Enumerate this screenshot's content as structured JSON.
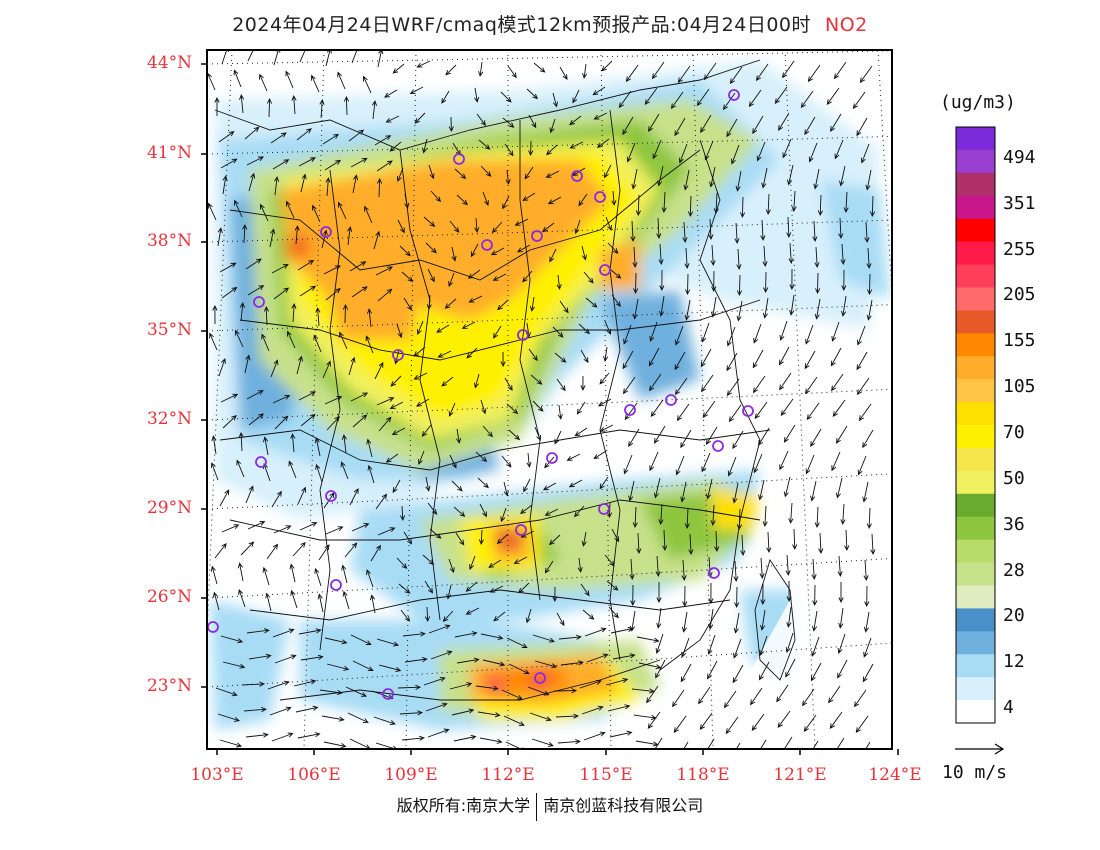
{
  "title": {
    "text": "2024年04月24日WRF/cmaq模式12km预报产品:04月24日00时",
    "species": "NO2"
  },
  "map": {
    "lat_labels": [
      "44°N",
      "41°N",
      "38°N",
      "35°N",
      "32°N",
      "29°N",
      "26°N",
      "23°N"
    ],
    "lon_labels": [
      "103°E",
      "106°E",
      "109°E",
      "112°E",
      "115°E",
      "118°E",
      "121°E",
      "124°E"
    ]
  },
  "colorbar": {
    "unit": "(ug/m3)",
    "labels": [
      "494",
      "351",
      "255",
      "205",
      "155",
      "105",
      "70",
      "50",
      "36",
      "28",
      "20",
      "12",
      "4"
    ],
    "colors": [
      "#7b2bd9",
      "#9a3fd0",
      "#b0306a",
      "#c8178a",
      "#ff0000",
      "#ff1a4a",
      "#ff3e5a",
      "#ff6a6a",
      "#e85a2a",
      "#ff8800",
      "#ffad2a",
      "#ffc444",
      "#ffe000",
      "#fff000",
      "#f5e64b",
      "#f0f060",
      "#6aaa2e",
      "#8ec63f",
      "#b8dc6a",
      "#c7e18a",
      "#deecc0",
      "#4a90c8",
      "#6fb0de",
      "#a8dcf5",
      "#d8f0fb",
      "#ffffff"
    ]
  },
  "wind_vector": {
    "label": "10 m/s"
  },
  "footer": {
    "left": "版权所有:南京大学",
    "right": "南京创蓝科技有限公司"
  }
}
